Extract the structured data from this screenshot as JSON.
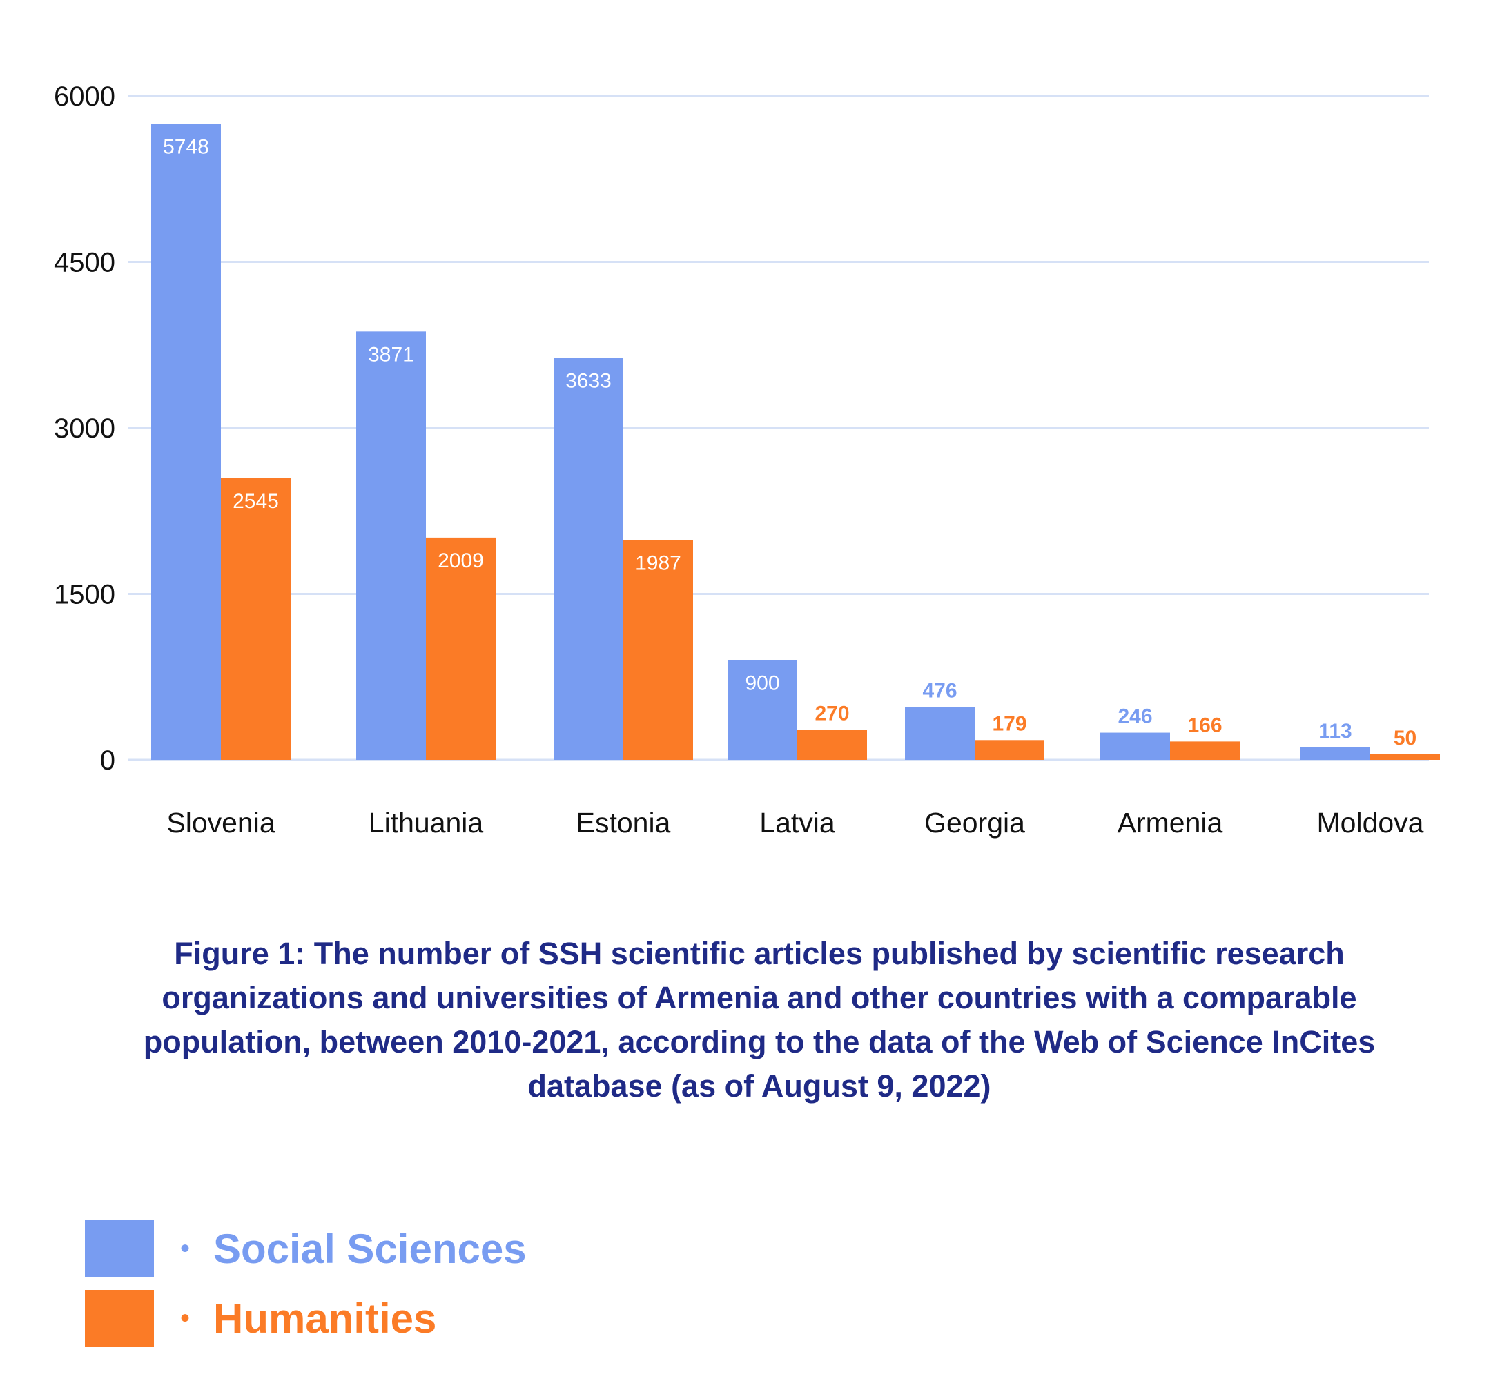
{
  "chart_data": {
    "type": "bar",
    "categories": [
      "Slovenia",
      "Lithuania",
      "Estonia",
      "Latvia",
      "Georgia",
      "Armenia",
      "Moldova"
    ],
    "series": [
      {
        "name": "Social Sciences",
        "color": "#789cf1",
        "values": [
          5748,
          3871,
          3633,
          900,
          476,
          246,
          113
        ]
      },
      {
        "name": "Humanities",
        "color": "#fb7b26",
        "values": [
          2545,
          2009,
          1987,
          270,
          179,
          166,
          50
        ]
      }
    ],
    "title": "",
    "xlabel": "",
    "ylabel": "",
    "ylim": [
      0,
      6000
    ],
    "yticks": [
      0,
      1500,
      3000,
      4500,
      6000
    ],
    "grid": true,
    "legend_position": "bottom-left"
  },
  "caption": "Figure 1: The number of SSH scientific articles published by scientific research organizations and universities of Armenia and other countries with a comparable population, between 2010-2021, according to the data of the Web of Science InCites database (as of August 9, 2022)",
  "legend": {
    "bullet": "•",
    "items": [
      {
        "label": "Social Sciences",
        "color": "#789cf1"
      },
      {
        "label": "Humanities",
        "color": "#fb7b26"
      }
    ]
  }
}
